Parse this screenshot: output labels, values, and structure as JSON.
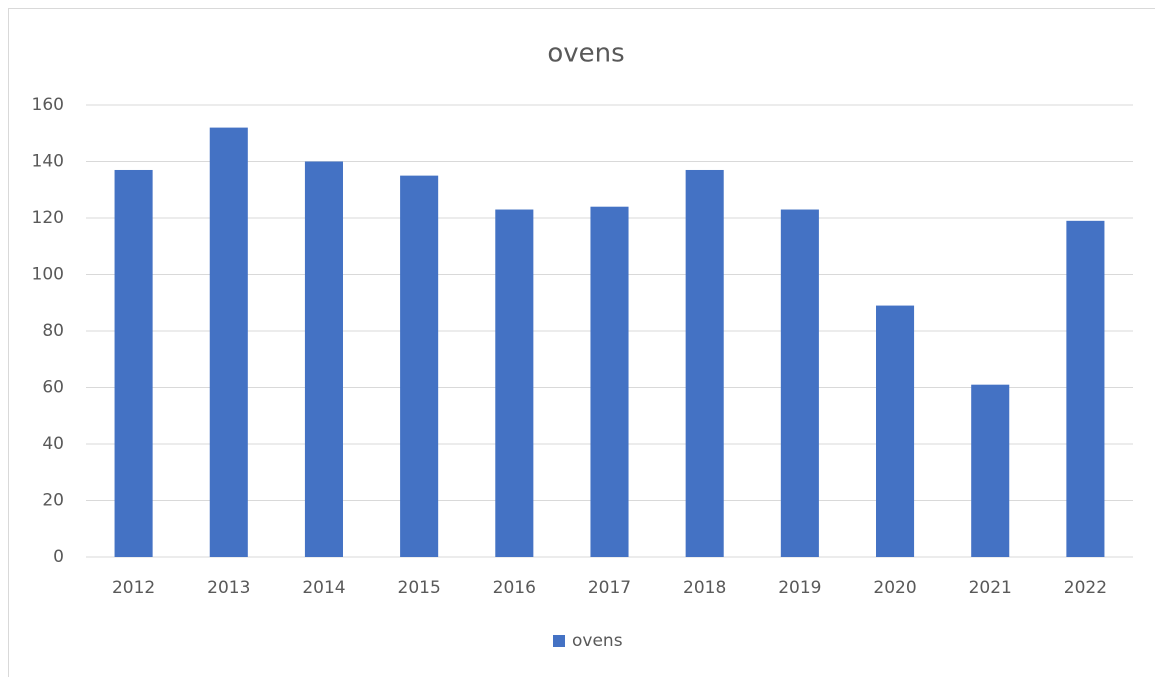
{
  "chart_data": {
    "type": "bar",
    "title": "ovens",
    "categories": [
      "2012",
      "2013",
      "2014",
      "2015",
      "2016",
      "2017",
      "2018",
      "2019",
      "2020",
      "2021",
      "2022"
    ],
    "series": [
      {
        "name": "ovens",
        "color": "#4472c4",
        "values": [
          137,
          152,
          140,
          135,
          123,
          124,
          137,
          123,
          89,
          61,
          119
        ]
      }
    ],
    "ylim": [
      0,
      160
    ],
    "yticks": [
      0,
      20,
      40,
      60,
      80,
      100,
      120,
      140,
      160
    ],
    "grid": true,
    "legend": "bottom"
  }
}
